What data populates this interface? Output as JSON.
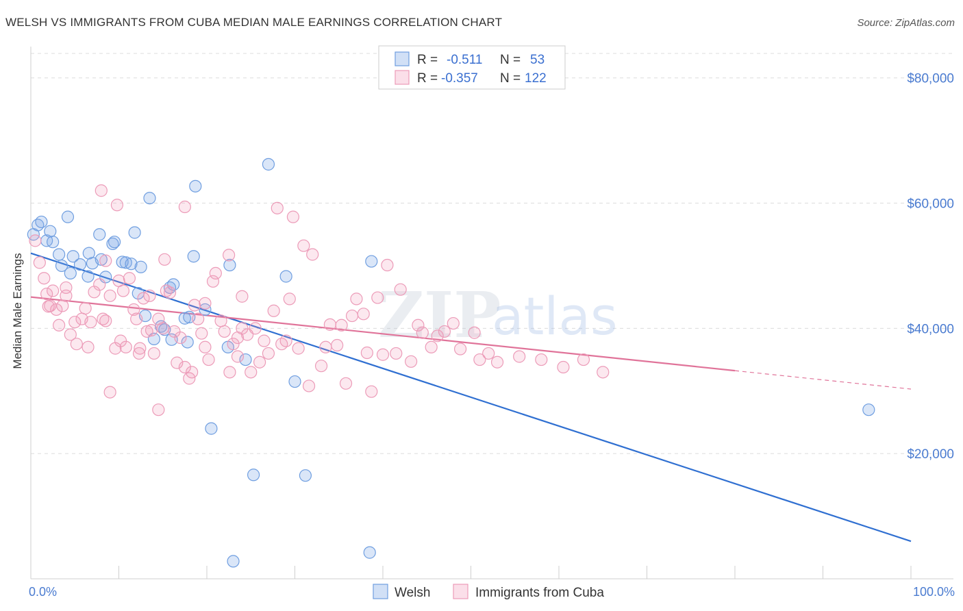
{
  "title": "WELSH VS IMMIGRANTS FROM CUBA MEDIAN MALE EARNINGS CORRELATION CHART",
  "source": "Source: ZipAtlas.com",
  "watermark": {
    "zip": "ZIP",
    "atlas": "atlas"
  },
  "legend": {
    "rows": [
      {
        "r_label": "R =",
        "r_value": "-0.511",
        "n_label": "N =",
        "n_value": "53",
        "color": "#6f9ee0"
      },
      {
        "r_label": "R =",
        "r_value": "-0.357",
        "n_label": "N =",
        "n_value": "122",
        "color": "#ec9bb8"
      }
    ]
  },
  "bottom_legend": [
    "Welsh",
    "Immigrants from Cuba"
  ],
  "chart_data": {
    "type": "scatter",
    "xlabel": "",
    "ylabel": "Median Male Earnings",
    "xlim": [
      0,
      100
    ],
    "ylim": [
      0,
      85000
    ],
    "x_tick_labels": [
      "0.0%",
      "100.0%"
    ],
    "y_ticks": [
      20000,
      40000,
      60000,
      80000
    ],
    "y_tick_labels": [
      "$20,000",
      "$40,000",
      "$60,000",
      "$80,000"
    ],
    "grid": true,
    "series": [
      {
        "name": "Welsh",
        "color": "#6f9ee0",
        "line_color": "#2f6fd1",
        "trend": {
          "x0": 0,
          "y0": 52000,
          "x1": 100,
          "y1": 6000,
          "dash_from": null
        },
        "points": [
          [
            0.8,
            56500
          ],
          [
            1.2,
            57000
          ],
          [
            2.2,
            55500
          ],
          [
            1.8,
            54000
          ],
          [
            2.5,
            53800
          ],
          [
            4.2,
            57800
          ],
          [
            3.2,
            51800
          ],
          [
            7.8,
            55000
          ],
          [
            9.3,
            53500
          ],
          [
            9.5,
            53800
          ],
          [
            11.8,
            55300
          ],
          [
            8.5,
            48200
          ],
          [
            6.5,
            48300
          ],
          [
            4.5,
            48800
          ],
          [
            3.5,
            50000
          ],
          [
            5.6,
            50200
          ],
          [
            7.0,
            50400
          ],
          [
            10.8,
            50500
          ],
          [
            10.4,
            50600
          ],
          [
            11.4,
            50300
          ],
          [
            12.5,
            49800
          ],
          [
            13.5,
            60800
          ],
          [
            18.7,
            62700
          ],
          [
            27.0,
            66200
          ],
          [
            18.5,
            51500
          ],
          [
            22.6,
            50100
          ],
          [
            29.0,
            48300
          ],
          [
            38.7,
            50700
          ],
          [
            12.2,
            45600
          ],
          [
            15.8,
            46500
          ],
          [
            19.8,
            43000
          ],
          [
            13.0,
            42000
          ],
          [
            17.5,
            41600
          ],
          [
            18.0,
            41800
          ],
          [
            14.8,
            40300
          ],
          [
            15.2,
            39800
          ],
          [
            16.0,
            38200
          ],
          [
            14.0,
            38300
          ],
          [
            17.8,
            37800
          ],
          [
            22.4,
            37000
          ],
          [
            24.4,
            35000
          ],
          [
            30.0,
            31500
          ],
          [
            20.5,
            24000
          ],
          [
            25.3,
            16600
          ],
          [
            31.2,
            16500
          ],
          [
            23.0,
            2800
          ],
          [
            38.5,
            4200
          ],
          [
            95.2,
            27000
          ],
          [
            6.6,
            52000
          ],
          [
            0.3,
            55000
          ],
          [
            4.8,
            51500
          ],
          [
            16.2,
            47000
          ],
          [
            8.0,
            51000
          ]
        ]
      },
      {
        "name": "Immigrants from Cuba",
        "color": "#ec9bb8",
        "line_color": "#e07399",
        "trend": {
          "x0": 0,
          "y0": 45000,
          "x1": 100,
          "y1": 30300,
          "dash_from": 80
        },
        "points": [
          [
            0.5,
            54000
          ],
          [
            1.0,
            50500
          ],
          [
            1.5,
            48000
          ],
          [
            1.8,
            45500
          ],
          [
            2.0,
            43500
          ],
          [
            2.5,
            46000
          ],
          [
            2.9,
            43000
          ],
          [
            3.2,
            40500
          ],
          [
            3.6,
            43600
          ],
          [
            4.0,
            45200
          ],
          [
            4.5,
            39000
          ],
          [
            5.0,
            41000
          ],
          [
            5.2,
            37500
          ],
          [
            5.8,
            41500
          ],
          [
            6.2,
            43200
          ],
          [
            6.8,
            41000
          ],
          [
            7.2,
            45800
          ],
          [
            7.8,
            47000
          ],
          [
            8.2,
            41500
          ],
          [
            8.5,
            50800
          ],
          [
            9.0,
            45200
          ],
          [
            9.6,
            36800
          ],
          [
            10.0,
            47600
          ],
          [
            10.5,
            46000
          ],
          [
            10.8,
            37000
          ],
          [
            11.2,
            48000
          ],
          [
            11.7,
            43000
          ],
          [
            12.0,
            41500
          ],
          [
            12.4,
            36800
          ],
          [
            12.8,
            44800
          ],
          [
            13.2,
            39500
          ],
          [
            13.7,
            39700
          ],
          [
            14.0,
            36000
          ],
          [
            14.5,
            41500
          ],
          [
            15.0,
            40000
          ],
          [
            15.4,
            46000
          ],
          [
            15.8,
            45700
          ],
          [
            16.3,
            39500
          ],
          [
            16.6,
            34500
          ],
          [
            17.0,
            38500
          ],
          [
            17.5,
            33800
          ],
          [
            18.0,
            32000
          ],
          [
            18.6,
            43700
          ],
          [
            19.0,
            41500
          ],
          [
            19.4,
            39200
          ],
          [
            19.8,
            37000
          ],
          [
            20.2,
            35000
          ],
          [
            20.7,
            47500
          ],
          [
            21.0,
            48800
          ],
          [
            21.6,
            41200
          ],
          [
            22.0,
            39500
          ],
          [
            22.6,
            33000
          ],
          [
            23.0,
            37500
          ],
          [
            23.5,
            38500
          ],
          [
            24.0,
            40000
          ],
          [
            24.6,
            39000
          ],
          [
            25.0,
            33000
          ],
          [
            25.5,
            40000
          ],
          [
            26.0,
            34600
          ],
          [
            26.5,
            38000
          ],
          [
            27.0,
            36000
          ],
          [
            27.6,
            42800
          ],
          [
            28.0,
            59200
          ],
          [
            28.5,
            37500
          ],
          [
            29.0,
            38000
          ],
          [
            29.4,
            44700
          ],
          [
            29.8,
            57800
          ],
          [
            30.4,
            36800
          ],
          [
            31.0,
            53200
          ],
          [
            31.6,
            30800
          ],
          [
            32.0,
            51800
          ],
          [
            33.0,
            34000
          ],
          [
            33.5,
            37000
          ],
          [
            34.0,
            40600
          ],
          [
            34.8,
            37300
          ],
          [
            35.3,
            40500
          ],
          [
            35.8,
            31200
          ],
          [
            36.5,
            42000
          ],
          [
            37.0,
            44700
          ],
          [
            37.8,
            42300
          ],
          [
            38.2,
            36100
          ],
          [
            38.7,
            29900
          ],
          [
            39.4,
            44900
          ],
          [
            40.0,
            35800
          ],
          [
            40.5,
            50100
          ],
          [
            41.5,
            36000
          ],
          [
            42.0,
            46200
          ],
          [
            43.2,
            34700
          ],
          [
            44.0,
            40500
          ],
          [
            44.5,
            39300
          ],
          [
            45.5,
            37000
          ],
          [
            46.2,
            38800
          ],
          [
            47.0,
            39500
          ],
          [
            48.0,
            40800
          ],
          [
            48.8,
            36700
          ],
          [
            50.4,
            39300
          ],
          [
            51.0,
            35000
          ],
          [
            52.0,
            36000
          ],
          [
            53.0,
            34600
          ],
          [
            55.5,
            35500
          ],
          [
            58.0,
            35000
          ],
          [
            60.5,
            33800
          ],
          [
            62.8,
            35000
          ],
          [
            65.0,
            33000
          ],
          [
            8.0,
            62000
          ],
          [
            9.8,
            59700
          ],
          [
            17.5,
            59400
          ],
          [
            15.2,
            51000
          ],
          [
            22.5,
            51700
          ],
          [
            4.0,
            46500
          ],
          [
            2.2,
            43600
          ],
          [
            6.5,
            37000
          ],
          [
            13.5,
            45200
          ],
          [
            18.3,
            33000
          ],
          [
            24.0,
            45100
          ],
          [
            12.3,
            36000
          ],
          [
            8.5,
            41200
          ],
          [
            14.5,
            27000
          ],
          [
            9.0,
            29800
          ],
          [
            23.5,
            35500
          ],
          [
            10.2,
            38000
          ],
          [
            19.8,
            44000
          ]
        ]
      }
    ]
  }
}
